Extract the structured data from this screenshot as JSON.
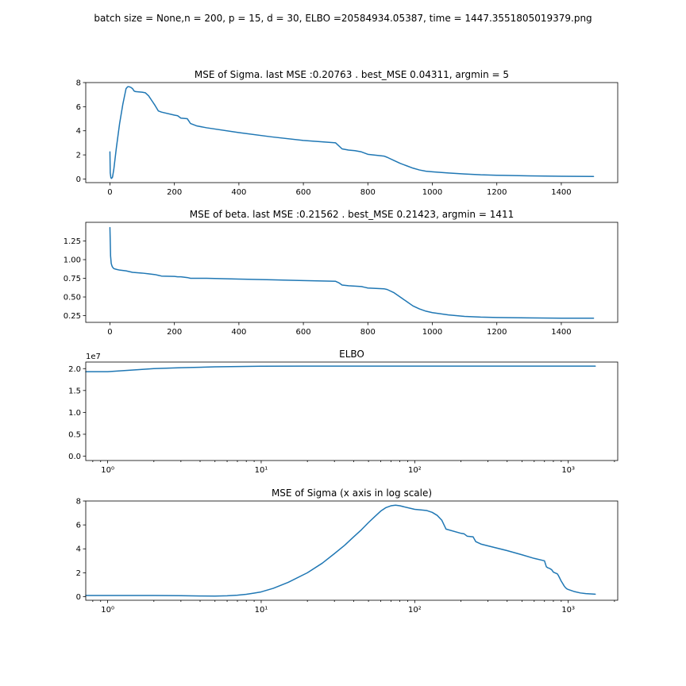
{
  "figure": {
    "suptitle": "batch size = None,n = 200, p = 15, d = 30,  ELBO =20584934.05387, time = 1447.3551805019379.png"
  },
  "colors": {
    "series": "#1f77b4",
    "axes": "#000000",
    "background": "#ffffff"
  },
  "chart_data": [
    {
      "type": "line",
      "title": "MSE of Sigma. last MSE :0.20763 . best_MSE 0.04311, argmin = 5",
      "xlabel": "",
      "ylabel": "",
      "xscale": "linear",
      "xlim": [
        -75,
        1575
      ],
      "ylim": [
        -0.3,
        8.0
      ],
      "xticks": [
        0,
        200,
        400,
        600,
        800,
        1000,
        1200,
        1400
      ],
      "xtick_labels": [
        "0",
        "200",
        "400",
        "600",
        "800",
        "1000",
        "1200",
        "1400"
      ],
      "yticks": [
        0,
        2,
        4,
        6,
        8
      ],
      "ytick_labels": [
        "0",
        "2",
        "4",
        "6",
        "8"
      ],
      "grid": false,
      "series": [
        {
          "x": [
            0,
            1,
            3,
            5,
            8,
            12,
            20,
            30,
            40,
            50,
            55,
            60,
            65,
            70,
            75,
            80,
            100,
            110,
            120,
            130,
            140,
            150,
            160,
            200,
            210,
            220,
            240,
            245,
            250,
            270,
            300,
            400,
            500,
            600,
            700,
            710,
            720,
            740,
            760,
            780,
            790,
            800,
            850,
            860,
            880,
            900,
            920,
            940,
            960,
            980,
            1000,
            1050,
            1100,
            1150,
            1200,
            1300,
            1400,
            1500
          ],
          "y": [
            2.25,
            0.5,
            0.1,
            0.05,
            0.15,
            0.8,
            2.6,
            4.6,
            6.2,
            7.5,
            7.65,
            7.65,
            7.6,
            7.5,
            7.3,
            7.25,
            7.2,
            7.15,
            6.9,
            6.5,
            6.1,
            5.65,
            5.55,
            5.3,
            5.25,
            5.05,
            5.0,
            4.8,
            4.6,
            4.4,
            4.25,
            3.85,
            3.5,
            3.2,
            3.0,
            2.75,
            2.5,
            2.4,
            2.35,
            2.25,
            2.15,
            2.05,
            1.9,
            1.8,
            1.55,
            1.3,
            1.1,
            0.9,
            0.75,
            0.65,
            0.6,
            0.5,
            0.42,
            0.35,
            0.31,
            0.26,
            0.23,
            0.21
          ]
        }
      ]
    },
    {
      "type": "line",
      "title": "MSE of beta. last MSE :0.21562 . best_MSE 0.21423, argmin = 1411",
      "xlabel": "",
      "ylabel": "",
      "xscale": "linear",
      "xlim": [
        -75,
        1575
      ],
      "ylim": [
        0.16,
        1.5
      ],
      "xticks": [
        0,
        200,
        400,
        600,
        800,
        1000,
        1200,
        1400
      ],
      "xtick_labels": [
        "0",
        "200",
        "400",
        "600",
        "800",
        "1000",
        "1200",
        "1400"
      ],
      "yticks": [
        0.25,
        0.5,
        0.75,
        1.0,
        1.25
      ],
      "ytick_labels": [
        "0.25",
        "0.50",
        "0.75",
        "1.00",
        "1.25"
      ],
      "grid": false,
      "series": [
        {
          "x": [
            0,
            2,
            4,
            6,
            8,
            12,
            20,
            30,
            50,
            70,
            100,
            120,
            140,
            150,
            160,
            200,
            210,
            220,
            240,
            250,
            260,
            300,
            400,
            500,
            600,
            700,
            710,
            720,
            740,
            760,
            780,
            790,
            800,
            850,
            860,
            880,
            900,
            920,
            940,
            960,
            980,
            1000,
            1050,
            1100,
            1150,
            1200,
            1300,
            1400,
            1500
          ],
          "y": [
            1.43,
            1.05,
            0.95,
            0.92,
            0.9,
            0.88,
            0.87,
            0.86,
            0.85,
            0.83,
            0.82,
            0.81,
            0.8,
            0.79,
            0.78,
            0.775,
            0.77,
            0.77,
            0.76,
            0.75,
            0.75,
            0.75,
            0.74,
            0.73,
            0.72,
            0.71,
            0.69,
            0.66,
            0.65,
            0.645,
            0.64,
            0.63,
            0.62,
            0.61,
            0.6,
            0.56,
            0.5,
            0.44,
            0.38,
            0.34,
            0.31,
            0.29,
            0.26,
            0.24,
            0.23,
            0.225,
            0.22,
            0.216,
            0.216
          ]
        }
      ]
    },
    {
      "type": "line",
      "title": "ELBO",
      "xlabel": "",
      "ylabel": "",
      "xscale": "log",
      "xlim": [
        0.72,
        2100
      ],
      "ylim": [
        -0.1,
        2.15
      ],
      "y_offset_label": "1e7",
      "xticks": [
        1,
        10,
        100,
        1000
      ],
      "xtick_labels": [
        "10⁰",
        "10¹",
        "10²",
        "10³"
      ],
      "yticks": [
        0.0,
        0.5,
        1.0,
        1.5,
        2.0
      ],
      "ytick_labels": [
        "0.0",
        "0.5",
        "1.0",
        "1.5",
        "2.0"
      ],
      "grid": false,
      "series": [
        {
          "x": [
            0.72,
            1,
            1.5,
            2,
            3,
            5,
            10,
            20,
            50,
            100,
            300,
            1000,
            1500
          ],
          "y": [
            1.93,
            1.93,
            1.97,
            2.0,
            2.02,
            2.04,
            2.055,
            2.057,
            2.058,
            2.058,
            2.058,
            2.058,
            2.058
          ]
        }
      ]
    },
    {
      "type": "line",
      "title": "MSE of Sigma (x axis in log scale)",
      "xlabel": "",
      "ylabel": "",
      "xscale": "log",
      "xlim": [
        0.72,
        2100
      ],
      "ylim": [
        -0.3,
        8.0
      ],
      "xticks": [
        1,
        10,
        100,
        1000
      ],
      "xtick_labels": [
        "10⁰",
        "10¹",
        "10²",
        "10³"
      ],
      "yticks": [
        0,
        2,
        4,
        6,
        8
      ],
      "ytick_labels": [
        "0",
        "2",
        "4",
        "6",
        "8"
      ],
      "grid": false,
      "series": [
        {
          "x": [
            0.72,
            1,
            2,
            3,
            4,
            5,
            6,
            7,
            8,
            9,
            10,
            12,
            15,
            20,
            25,
            30,
            35,
            40,
            45,
            50,
            55,
            60,
            65,
            70,
            75,
            80,
            100,
            110,
            120,
            130,
            140,
            150,
            160,
            200,
            210,
            220,
            240,
            245,
            250,
            270,
            300,
            400,
            500,
            600,
            700,
            710,
            720,
            740,
            760,
            780,
            790,
            800,
            850,
            860,
            880,
            900,
            920,
            940,
            960,
            980,
            1000,
            1100,
            1200,
            1300,
            1400,
            1500
          ],
          "y": [
            0.1,
            0.1,
            0.1,
            0.08,
            0.06,
            0.05,
            0.07,
            0.12,
            0.2,
            0.3,
            0.4,
            0.7,
            1.2,
            2.0,
            2.8,
            3.6,
            4.3,
            5.0,
            5.6,
            6.2,
            6.7,
            7.15,
            7.45,
            7.6,
            7.65,
            7.6,
            7.3,
            7.25,
            7.2,
            7.05,
            6.8,
            6.4,
            5.65,
            5.3,
            5.25,
            5.05,
            5.0,
            4.8,
            4.6,
            4.4,
            4.25,
            3.85,
            3.5,
            3.2,
            3.0,
            2.75,
            2.5,
            2.4,
            2.35,
            2.25,
            2.15,
            2.05,
            1.9,
            1.8,
            1.55,
            1.3,
            1.1,
            0.9,
            0.75,
            0.65,
            0.6,
            0.42,
            0.31,
            0.26,
            0.23,
            0.21
          ]
        }
      ]
    }
  ]
}
